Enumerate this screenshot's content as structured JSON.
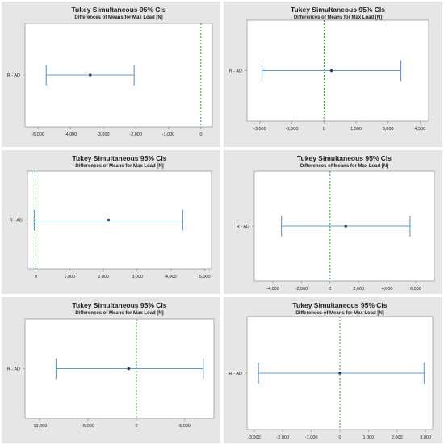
{
  "colors": {
    "panel_bg": "#e6e6e6",
    "plot_bg": "#ffffff",
    "axis": "#9a9a9a",
    "interval": "#5b9bd5",
    "point": "#1f3f73",
    "reference": "#2ca02c",
    "text": "#222222"
  },
  "chart_data": [
    {
      "type": "interval",
      "title": "Tukey Simultaneous 95% CIs",
      "subtitle": "Differences of Means for Max Load [N]",
      "category": "R - AD",
      "estimate": -3400,
      "lower": -4750,
      "upper": -2050,
      "reference": 0,
      "xlim": [
        -5400,
        350
      ],
      "xticks": [
        -5000,
        -4000,
        -3000,
        -2000,
        -1000,
        0
      ],
      "xtick_labels": [
        "-5,000",
        "-4,000",
        "-3,000",
        "-2,000",
        "-1,000",
        "0"
      ]
    },
    {
      "type": "interval",
      "title": "Tukey Simultaneous 95% CIs",
      "subtitle": "Differences of Means for Max Load [N]",
      "category": "R - AD",
      "estimate": 350,
      "lower": -2900,
      "upper": 3600,
      "reference": 0,
      "xlim": [
        -3600,
        4900
      ],
      "xticks": [
        -3000,
        -1500,
        0,
        1500,
        3000,
        4500
      ],
      "xtick_labels": [
        "-3,000",
        "-1,500",
        "0",
        "1,500",
        "3,000",
        "4,500"
      ]
    },
    {
      "type": "interval",
      "title": "Tukey Simultaneous 95% CIs",
      "subtitle": "Differences of Means for Max Load [N]",
      "category": "R - AD",
      "estimate": 2150,
      "lower": -50,
      "upper": 4350,
      "reference": 0,
      "xlim": [
        -250,
        5200
      ],
      "xticks": [
        0,
        1000,
        2000,
        3000,
        4000,
        5000
      ],
      "xtick_labels": [
        "0",
        "1,000",
        "2,000",
        "3,000",
        "4,000",
        "5,000"
      ]
    },
    {
      "type": "interval",
      "title": "Tukey Simultaneous 95% CIs",
      "subtitle": "Differences of Means for Max Load [N]",
      "category": "R - AD",
      "estimate": 1100,
      "lower": -3400,
      "upper": 5600,
      "reference": 0,
      "xlim": [
        -5300,
        7300
      ],
      "xticks": [
        -4000,
        -2000,
        0,
        2000,
        4000,
        6000
      ],
      "xtick_labels": [
        "-4,000",
        "-2,000",
        "0",
        "2,000",
        "4,000",
        "6,000"
      ]
    },
    {
      "type": "interval",
      "title": "Tukey Simultaneous 95% CIs",
      "subtitle": "Differences of Means for Max Load [N]",
      "category": "R - AD",
      "estimate": -800,
      "lower": -8300,
      "upper": 6900,
      "reference": 0,
      "xlim": [
        -11500,
        8000
      ],
      "xticks": [
        -10000,
        -5000,
        0,
        5000
      ],
      "xtick_labels": [
        "-10,000",
        "-5,000",
        "0",
        "5,000"
      ]
    },
    {
      "type": "interval",
      "title": "Tukey Simultaneous 95% CIs",
      "subtitle": "Differences of Means for Max Load [N]",
      "category": "R - AD",
      "estimate": 0,
      "lower": -2850,
      "upper": 2950,
      "reference": 0,
      "xlim": [
        -3250,
        3250
      ],
      "xticks": [
        -3000,
        -2000,
        -1000,
        0,
        1000,
        2000,
        3000
      ],
      "xtick_labels": [
        "-3,000",
        "-2,000",
        "-1,000",
        "0",
        "1,000",
        "2,000",
        "3,000"
      ]
    }
  ]
}
